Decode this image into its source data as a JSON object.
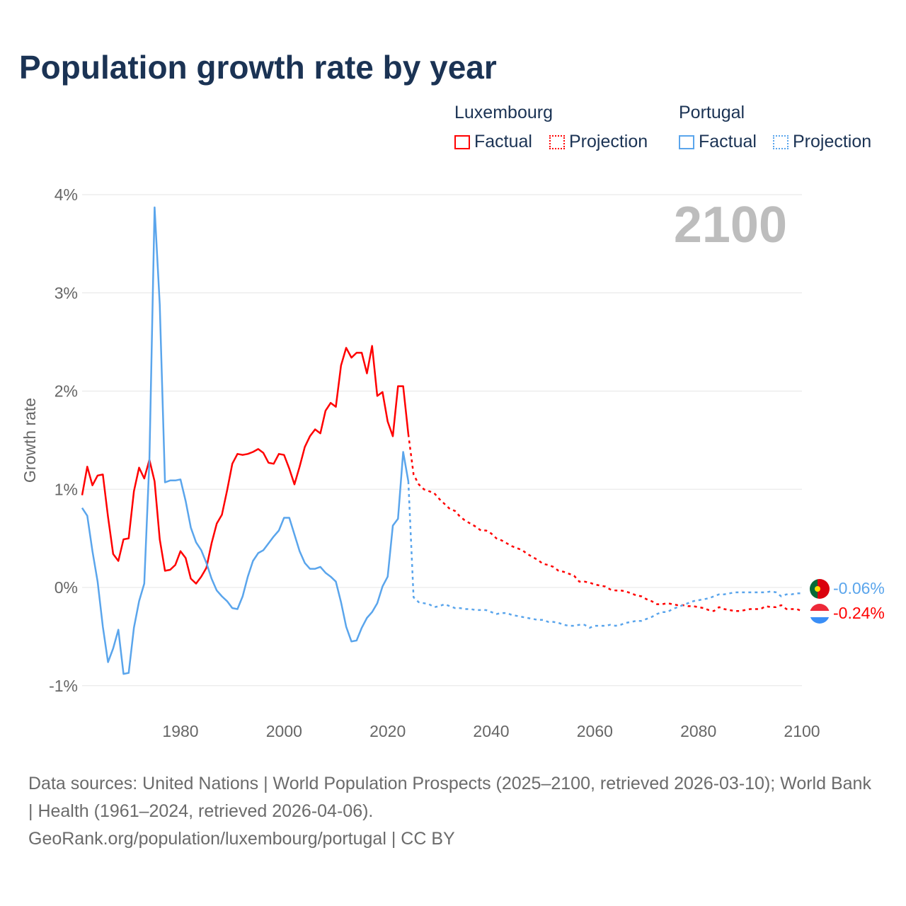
{
  "title": "Population growth rate by year",
  "legend": {
    "groups": [
      {
        "name": "Luxembourg",
        "factual": "Factual",
        "projection": "Projection",
        "color": "#ff0000"
      },
      {
        "name": "Portugal",
        "factual": "Factual",
        "projection": "Projection",
        "color": "#5aa5ec"
      }
    ]
  },
  "year_label": "2100",
  "end_labels": {
    "portugal": "-0.06%",
    "luxembourg": "-0.24%"
  },
  "source_lines": [
    "Data sources: United Nations | World Population Prospects (2025–2100, retrieved 2026-03-10); World Bank | Health (1961–2024, retrieved 2026-04-06).",
    "GeoRank.org/population/luxembourg/portugal | CC BY"
  ],
  "chart_data": {
    "type": "line",
    "title": "Population growth rate by year",
    "xlabel": "",
    "ylabel": "Growth rate",
    "xlim": [
      1961,
      2100
    ],
    "ylim": [
      -1.3,
      4.1
    ],
    "x_ticks": [
      1980,
      2000,
      2020,
      2040,
      2060,
      2080,
      2100
    ],
    "x_tick_labels": [
      "1980",
      "2000",
      "2020",
      "2040",
      "2060",
      "2080",
      "2100"
    ],
    "y_ticks": [
      -1,
      0,
      1,
      2,
      3,
      4
    ],
    "y_tick_labels": [
      "-1%",
      "0%",
      "1%",
      "2%",
      "3%",
      "4%"
    ],
    "grid": true,
    "legend_position": "top-right",
    "series": [
      {
        "name": "Luxembourg Factual",
        "color": "#ff0000",
        "style": "solid",
        "x_start": 1961,
        "values": [
          0.94,
          1.23,
          1.04,
          1.14,
          1.15,
          0.72,
          0.34,
          0.27,
          0.49,
          0.5,
          0.98,
          1.22,
          1.11,
          1.3,
          1.08,
          0.49,
          0.17,
          0.18,
          0.23,
          0.37,
          0.3,
          0.09,
          0.04,
          0.11,
          0.2,
          0.45,
          0.65,
          0.74,
          0.99,
          1.26,
          1.36,
          1.35,
          1.36,
          1.38,
          1.41,
          1.37,
          1.27,
          1.26,
          1.36,
          1.35,
          1.21,
          1.05,
          1.23,
          1.43,
          1.54,
          1.61,
          1.57,
          1.8,
          1.88,
          1.84,
          2.26,
          2.44,
          2.34,
          2.39,
          2.39,
          2.18,
          2.46,
          1.95,
          1.99,
          1.69,
          1.54,
          2.05,
          2.05,
          1.56
        ]
      },
      {
        "name": "Luxembourg Projection",
        "color": "#ff0000",
        "style": "dotted",
        "x_start": 2025,
        "values": [
          1.15,
          1.05,
          1.0,
          0.98,
          0.96,
          0.9,
          0.85,
          0.8,
          0.78,
          0.72,
          0.68,
          0.65,
          0.62,
          0.58,
          0.58,
          0.55,
          0.5,
          0.48,
          0.45,
          0.42,
          0.4,
          0.38,
          0.34,
          0.31,
          0.28,
          0.24,
          0.23,
          0.21,
          0.17,
          0.16,
          0.14,
          0.12,
          0.06,
          0.06,
          0.05,
          0.03,
          0.02,
          0.01,
          -0.02,
          -0.03,
          -0.03,
          -0.04,
          -0.06,
          -0.08,
          -0.09,
          -0.12,
          -0.14,
          -0.17,
          -0.17,
          -0.16,
          -0.17,
          -0.18,
          -0.18,
          -0.19,
          -0.19,
          -0.2,
          -0.21,
          -0.23,
          -0.24,
          -0.2,
          -0.22,
          -0.23,
          -0.24,
          -0.24,
          -0.23,
          -0.22,
          -0.22,
          -0.22,
          -0.19,
          -0.2,
          -0.2,
          -0.18,
          -0.22,
          -0.22,
          -0.22,
          -0.24
        ]
      },
      {
        "name": "Portugal Factual",
        "color": "#5aa5ec",
        "style": "solid",
        "x_start": 1961,
        "values": [
          0.81,
          0.73,
          0.37,
          0.06,
          -0.4,
          -0.76,
          -0.62,
          -0.43,
          -0.88,
          -0.87,
          -0.41,
          -0.14,
          0.04,
          1.3,
          3.87,
          2.88,
          1.07,
          1.09,
          1.09,
          1.1,
          0.88,
          0.61,
          0.46,
          0.38,
          0.25,
          0.09,
          -0.03,
          -0.09,
          -0.14,
          -0.21,
          -0.22,
          -0.09,
          0.11,
          0.27,
          0.35,
          0.38,
          0.45,
          0.52,
          0.58,
          0.71,
          0.71,
          0.54,
          0.37,
          0.25,
          0.19,
          0.19,
          0.21,
          0.15,
          0.11,
          0.06,
          -0.15,
          -0.4,
          -0.55,
          -0.54,
          -0.41,
          -0.31,
          -0.25,
          -0.16,
          0.01,
          0.11,
          0.63,
          0.7,
          1.38,
          1.08
        ]
      },
      {
        "name": "Portugal Projection",
        "color": "#5aa5ec",
        "style": "dotted",
        "x_start": 2025,
        "values": [
          -0.1,
          -0.15,
          -0.16,
          -0.17,
          -0.2,
          -0.19,
          -0.17,
          -0.19,
          -0.21,
          -0.21,
          -0.22,
          -0.22,
          -0.23,
          -0.23,
          -0.23,
          -0.25,
          -0.27,
          -0.26,
          -0.26,
          -0.28,
          -0.29,
          -0.3,
          -0.31,
          -0.32,
          -0.33,
          -0.33,
          -0.35,
          -0.35,
          -0.36,
          -0.38,
          -0.39,
          -0.39,
          -0.38,
          -0.38,
          -0.41,
          -0.39,
          -0.39,
          -0.39,
          -0.38,
          -0.39,
          -0.38,
          -0.36,
          -0.35,
          -0.34,
          -0.34,
          -0.32,
          -0.3,
          -0.27,
          -0.25,
          -0.25,
          -0.22,
          -0.2,
          -0.18,
          -0.16,
          -0.14,
          -0.13,
          -0.12,
          -0.11,
          -0.09,
          -0.07,
          -0.07,
          -0.06,
          -0.05,
          -0.05,
          -0.05,
          -0.05,
          -0.05,
          -0.05,
          -0.05,
          -0.04,
          -0.05,
          -0.09,
          -0.07,
          -0.07,
          -0.06,
          -0.06
        ]
      }
    ]
  }
}
